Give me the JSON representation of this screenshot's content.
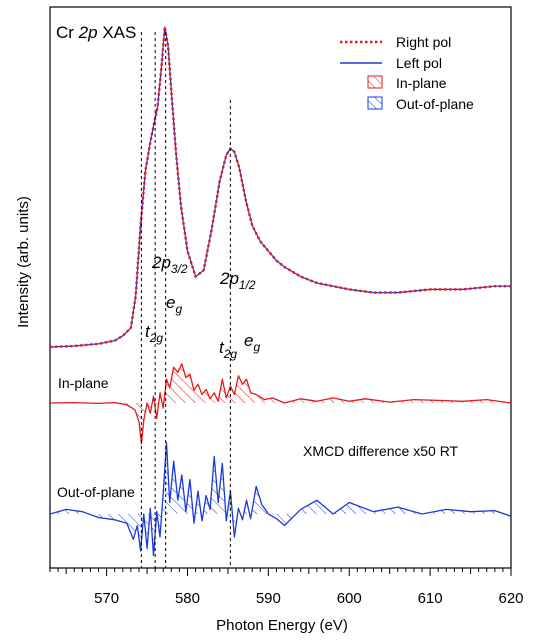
{
  "chart_data": {
    "type": "line",
    "title_main": "Cr ",
    "title_italic": "2p",
    "title_rest": " XAS",
    "xlabel": "Photon Energy (eV)",
    "ylabel": "Intensity (arb. units)",
    "xlim": [
      563,
      620
    ],
    "x_ticks": [
      570,
      580,
      590,
      600,
      610,
      620
    ],
    "x_tick_labels": [
      "570",
      "580",
      "590",
      "600",
      "610",
      "620"
    ],
    "grid": false,
    "legend_position": "top-right",
    "legend": [
      {
        "label": "Right pol",
        "style": "dotted-line",
        "color": "#e41a1c"
      },
      {
        "label": "Left pol",
        "style": "solid-line",
        "color": "#1a3adb"
      },
      {
        "label": "In-plane",
        "style": "hatched-box",
        "color": "#e41a1c"
      },
      {
        "label": "Out-of-plane",
        "style": "hatched-box",
        "color": "#1a3adb"
      }
    ],
    "annotations": {
      "p32_main": "2p",
      "p32_sub": "3/2",
      "p12_main": "2p",
      "p12_sub": "1/2",
      "t2g_main": "t",
      "t2g_sub": "2g",
      "eg_main": "e",
      "eg_sub": "g",
      "in_plane": "In-plane",
      "out_of_plane": "Out-of-plane",
      "xmcd": "XMCD difference x50 RT"
    },
    "reference_lines_x": [
      574.3,
      576.0,
      577.3,
      585.3
    ],
    "series": [
      {
        "name": "Right pol",
        "color": "#e41a1c",
        "x": [
          563,
          566,
          569,
          571,
          572,
          573,
          573.6,
          574.2,
          574.8,
          575.4,
          575.8,
          576.3,
          576.8,
          577.2,
          577.6,
          578.0,
          578.6,
          579.2,
          580,
          581,
          582,
          583,
          584,
          584.8,
          585.3,
          585.8,
          586.4,
          587.2,
          588,
          589,
          590,
          591,
          592,
          594,
          596,
          598,
          600,
          603,
          606,
          610,
          614,
          618,
          620
        ],
        "y": [
          0.0,
          0.003,
          0.01,
          0.02,
          0.035,
          0.06,
          0.16,
          0.38,
          0.55,
          0.64,
          0.69,
          0.75,
          0.88,
          1.0,
          0.94,
          0.8,
          0.6,
          0.44,
          0.3,
          0.22,
          0.24,
          0.37,
          0.52,
          0.6,
          0.62,
          0.61,
          0.56,
          0.46,
          0.38,
          0.33,
          0.3,
          0.27,
          0.25,
          0.22,
          0.2,
          0.19,
          0.18,
          0.17,
          0.17,
          0.18,
          0.18,
          0.19,
          0.19
        ]
      },
      {
        "name": "Left pol",
        "color": "#1a3adb",
        "x": [
          563,
          566,
          569,
          571,
          572,
          573,
          573.6,
          574.2,
          574.8,
          575.4,
          575.8,
          576.3,
          576.8,
          577.2,
          577.6,
          578.0,
          578.6,
          579.2,
          580,
          581,
          582,
          583,
          584,
          584.8,
          585.3,
          585.8,
          586.4,
          587.2,
          588,
          589,
          590,
          591,
          592,
          594,
          596,
          598,
          600,
          603,
          606,
          610,
          614,
          618,
          620
        ],
        "y": [
          0.0,
          0.003,
          0.01,
          0.02,
          0.035,
          0.06,
          0.16,
          0.38,
          0.55,
          0.64,
          0.69,
          0.75,
          0.88,
          1.0,
          0.94,
          0.8,
          0.6,
          0.44,
          0.3,
          0.22,
          0.24,
          0.37,
          0.52,
          0.6,
          0.62,
          0.61,
          0.56,
          0.46,
          0.38,
          0.33,
          0.3,
          0.27,
          0.25,
          0.22,
          0.2,
          0.19,
          0.18,
          0.17,
          0.17,
          0.18,
          0.18,
          0.19,
          0.19
        ]
      },
      {
        "name": "In-plane",
        "color": "#e41a1c",
        "x": [
          563,
          566,
          569,
          571,
          572.5,
          573.5,
          574.0,
          574.3,
          574.6,
          575.0,
          575.4,
          575.8,
          576.2,
          576.6,
          577.0,
          577.4,
          577.8,
          578.3,
          578.8,
          579.3,
          579.8,
          580.3,
          580.8,
          581.3,
          581.8,
          582.3,
          582.8,
          583.3,
          583.8,
          584.3,
          584.8,
          585.3,
          585.8,
          586.3,
          586.8,
          587.3,
          587.8,
          588.5,
          589.5,
          590.5,
          592,
          594,
          596,
          598,
          600,
          602,
          605,
          608,
          611,
          614,
          617,
          620
        ],
        "y": [
          0.0,
          0.005,
          -0.005,
          0.005,
          -0.02,
          -0.08,
          -0.22,
          -0.48,
          -0.2,
          0.0,
          -0.12,
          0.08,
          -0.18,
          0.12,
          -0.06,
          0.28,
          0.18,
          0.42,
          0.36,
          0.46,
          0.3,
          0.34,
          0.15,
          0.22,
          0.1,
          0.16,
          0.05,
          0.12,
          0.02,
          0.28,
          0.06,
          0.2,
          0.1,
          0.32,
          0.22,
          0.28,
          0.12,
          0.1,
          0.04,
          0.06,
          0.0,
          0.05,
          0.02,
          0.06,
          0.02,
          0.05,
          0.01,
          0.04,
          0.03,
          0.02,
          0.04,
          0.0
        ]
      },
      {
        "name": "Out-of-plane",
        "color": "#1a3adb",
        "x": [
          563,
          565,
          567,
          569,
          571,
          572.5,
          573.3,
          573.8,
          574.2,
          574.6,
          575.0,
          575.4,
          575.8,
          576.2,
          576.6,
          577.0,
          577.4,
          577.8,
          578.3,
          578.8,
          579.3,
          579.8,
          580.3,
          580.8,
          581.3,
          581.8,
          582.3,
          582.8,
          583.3,
          583.8,
          584.3,
          584.8,
          585.3,
          585.8,
          586.3,
          586.8,
          587.3,
          587.8,
          588.5,
          589.2,
          590,
          591,
          592,
          594,
          596,
          598,
          600,
          603,
          606,
          609,
          612,
          615,
          618,
          620
        ],
        "y": [
          0.0,
          0.04,
          0.02,
          -0.03,
          -0.05,
          -0.08,
          -0.22,
          -0.1,
          -0.32,
          0.0,
          -0.3,
          0.05,
          -0.36,
          0.02,
          -0.2,
          0.18,
          0.62,
          0.1,
          0.46,
          0.12,
          0.34,
          0.02,
          0.3,
          -0.08,
          0.2,
          -0.06,
          0.16,
          0.04,
          0.5,
          0.1,
          0.44,
          -0.06,
          0.2,
          -0.2,
          0.05,
          -0.05,
          0.12,
          -0.04,
          0.24,
          0.08,
          0.0,
          -0.04,
          -0.1,
          0.04,
          0.12,
          0.0,
          0.1,
          0.02,
          0.06,
          0.0,
          0.04,
          0.02,
          0.03,
          -0.02
        ]
      }
    ]
  }
}
